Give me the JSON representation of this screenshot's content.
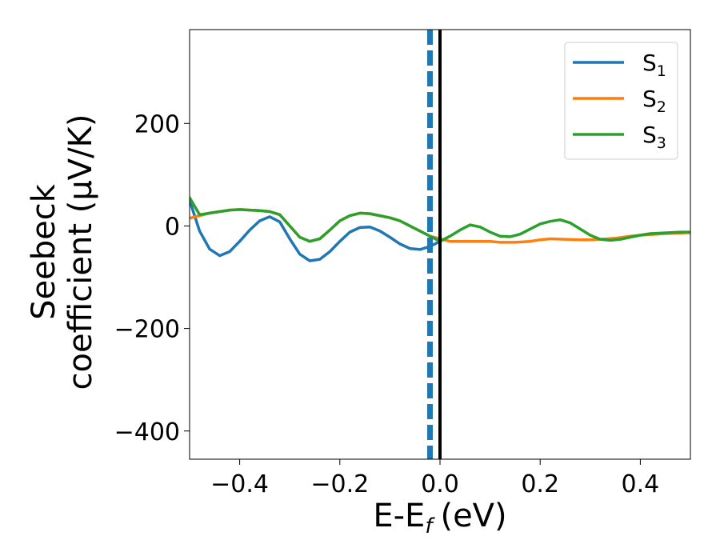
{
  "chart_data": {
    "type": "line",
    "title": "",
    "xlabel": "E-E",
    "xlabel_sub": "f",
    "xlabel_unit": "(eV)",
    "ylabel_line1": "Seebeck",
    "ylabel_line2": "coefficient  (μV/K)",
    "xlim": [
      -0.5,
      0.5
    ],
    "ylim": [
      -455,
      383
    ],
    "x_ticks": [
      -0.4,
      -0.2,
      0.0,
      0.2,
      0.4
    ],
    "x_tick_labels": [
      "−0.4",
      "−0.2",
      "0.0",
      "0.2",
      "0.4"
    ],
    "y_ticks": [
      -400,
      -200,
      0,
      200
    ],
    "y_tick_labels": [
      "−400",
      "−200",
      "0",
      "200"
    ],
    "grid": false,
    "legend_position": "top-right",
    "vertical_lines": [
      {
        "x": 0.0,
        "color": "#000000",
        "style": "solid"
      },
      {
        "x": -0.02,
        "color": "#1f77b4",
        "style": "dashed"
      }
    ],
    "series": [
      {
        "name": "S",
        "name_sub": "1",
        "color": "#1f77b4",
        "x": [
          -0.5,
          -0.48,
          -0.46,
          -0.44,
          -0.42,
          -0.4,
          -0.38,
          -0.36,
          -0.34,
          -0.32,
          -0.3,
          -0.28,
          -0.26,
          -0.24,
          -0.22,
          -0.2,
          -0.18,
          -0.16,
          -0.14,
          -0.12,
          -0.1,
          -0.08,
          -0.06,
          -0.04,
          -0.02,
          0.0
        ],
        "y": [
          50,
          -10,
          -45,
          -58,
          -50,
          -30,
          -8,
          10,
          18,
          8,
          -25,
          -55,
          -68,
          -65,
          -50,
          -30,
          -12,
          -3,
          -2,
          -10,
          -22,
          -35,
          -44,
          -46,
          -40,
          -30
        ]
      },
      {
        "name": "S",
        "name_sub": "2",
        "color": "#ff7f0e",
        "x": [
          -0.5,
          -0.48,
          -0.46,
          -0.44,
          -0.42,
          -0.4,
          -0.38,
          -0.36,
          -0.34,
          -0.32,
          -0.3,
          -0.28,
          -0.26,
          -0.24,
          -0.22,
          -0.2,
          -0.18,
          -0.16,
          -0.14,
          -0.12,
          -0.1,
          -0.08,
          -0.06,
          -0.04,
          -0.02,
          0.0,
          0.02,
          0.05,
          0.08,
          0.1,
          0.12,
          0.15,
          0.18,
          0.2,
          0.22,
          0.25,
          0.28,
          0.3,
          0.32,
          0.35,
          0.38,
          0.4,
          0.42,
          0.45,
          0.48,
          0.5
        ],
        "y": [
          15,
          20,
          25,
          28,
          31,
          32,
          31,
          30,
          28,
          22,
          0,
          -22,
          -30,
          -25,
          -8,
          10,
          20,
          25,
          24,
          20,
          16,
          10,
          0,
          -10,
          -20,
          -25,
          -30,
          -30,
          -30,
          -30,
          -32,
          -32,
          -30,
          -27,
          -25,
          -26,
          -27,
          -27,
          -26,
          -24,
          -20,
          -18,
          -17,
          -15,
          -14,
          -13
        ]
      },
      {
        "name": "S",
        "name_sub": "3",
        "color": "#2ca02c",
        "x": [
          -0.5,
          -0.48,
          -0.46,
          -0.44,
          -0.42,
          -0.4,
          -0.38,
          -0.36,
          -0.34,
          -0.32,
          -0.3,
          -0.28,
          -0.26,
          -0.24,
          -0.22,
          -0.2,
          -0.18,
          -0.16,
          -0.14,
          -0.12,
          -0.1,
          -0.08,
          -0.06,
          -0.04,
          -0.02,
          0.0,
          0.02,
          0.04,
          0.06,
          0.08,
          0.1,
          0.12,
          0.14,
          0.16,
          0.18,
          0.2,
          0.22,
          0.24,
          0.26,
          0.28,
          0.3,
          0.32,
          0.34,
          0.36,
          0.38,
          0.4,
          0.42,
          0.44,
          0.46,
          0.48,
          0.5
        ],
        "y": [
          55,
          22,
          25,
          28,
          31,
          32,
          31,
          30,
          28,
          22,
          0,
          -22,
          -30,
          -25,
          -8,
          10,
          20,
          25,
          24,
          20,
          16,
          10,
          0,
          -10,
          -20,
          -30,
          -20,
          -8,
          2,
          -2,
          -12,
          -20,
          -21,
          -16,
          -6,
          4,
          9,
          12,
          6,
          -6,
          -18,
          -26,
          -28,
          -26,
          -22,
          -18,
          -15,
          -14,
          -13,
          -12,
          -12
        ]
      }
    ]
  }
}
